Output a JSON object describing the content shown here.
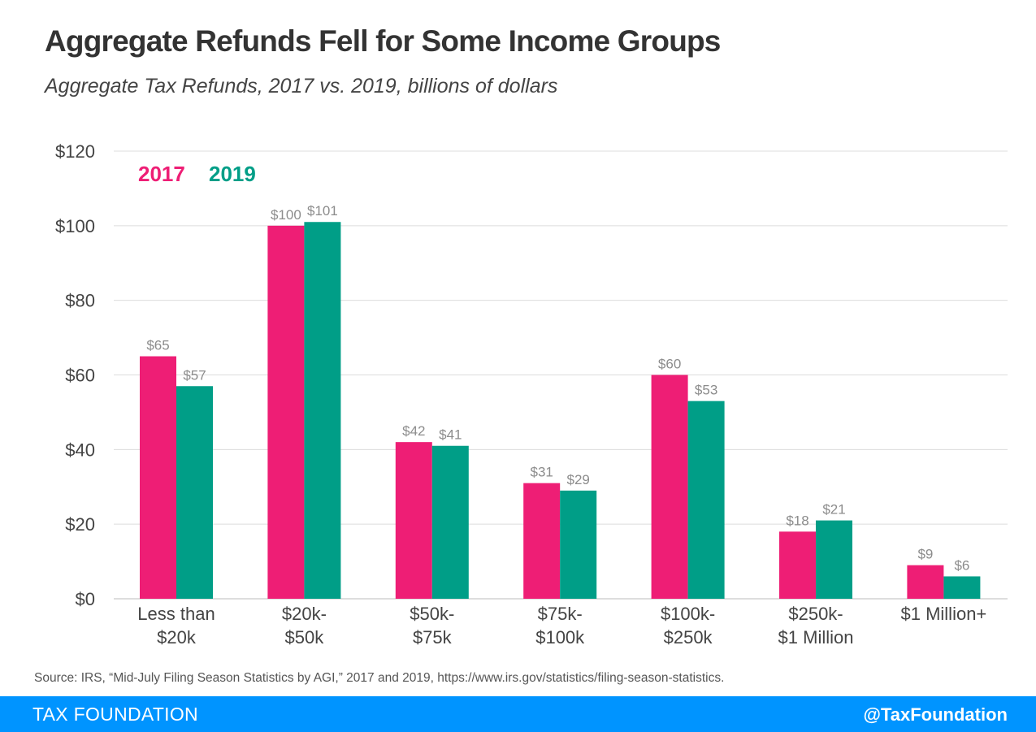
{
  "header": {
    "title": "Aggregate Refunds Fell for Some Income Groups",
    "subtitle": "Aggregate Tax Refunds, 2017 vs. 2019, billions of dollars"
  },
  "source": "Source: IRS, “Mid-July Filing Season Statistics by AGI,” 2017 and 2019, https://www.irs.gov/statistics/filing-season-statistics.",
  "footer": {
    "brand": "TAX FOUNDATION",
    "handle": "@TaxFoundation"
  },
  "colors": {
    "series_2017": "#ee1e75",
    "series_2019": "#009e87",
    "footer_bg": "#0094ff",
    "grid": "#dcdcdc",
    "data_label": "#8c8c8c"
  },
  "chart_data": {
    "type": "bar",
    "categories": [
      [
        "Less than",
        "$20k"
      ],
      [
        "$20k-",
        "$50k"
      ],
      [
        "$50k-",
        "$75k"
      ],
      [
        "$75k-",
        "$100k"
      ],
      [
        "$100k-",
        "$250k"
      ],
      [
        "$250k-",
        "$1 Million"
      ],
      [
        "$1 Million+"
      ]
    ],
    "series": [
      {
        "name": "2017",
        "values": [
          65,
          100,
          42,
          31,
          60,
          18,
          9
        ],
        "labels": [
          "$65",
          "$100",
          "$42",
          "$31",
          "$60",
          "$18",
          "$9"
        ]
      },
      {
        "name": "2019",
        "values": [
          57,
          101,
          41,
          29,
          53,
          21,
          6
        ],
        "labels": [
          "$57",
          "$101",
          "$41",
          "$29",
          "$53",
          "$21",
          "$6"
        ]
      }
    ],
    "ylim": [
      0,
      120
    ],
    "yticks": [
      0,
      20,
      40,
      60,
      80,
      100,
      120
    ],
    "ytick_labels": [
      "$0",
      "$20",
      "$40",
      "$60",
      "$80",
      "$100",
      "$120"
    ],
    "grid": true,
    "legend": "top-left"
  }
}
